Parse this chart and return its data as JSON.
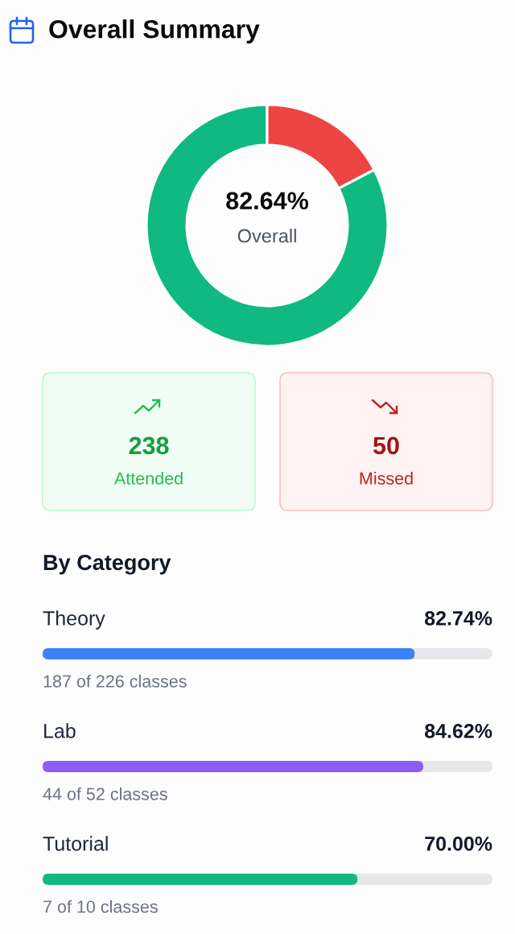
{
  "chart_data": [
    {
      "type": "donut",
      "title": "Overall Summary",
      "categories": [
        null,
        null
      ],
      "values": [
        82.64,
        17.36
      ],
      "colors": [
        "#10b981",
        "#ef4444"
      ],
      "annotations": [
        "82.64%",
        "Overall"
      ]
    },
    {
      "type": "other",
      "categories": [
        "Attended",
        "Missed"
      ],
      "values": [
        238,
        50
      ],
      "value_labels": [
        "238",
        "50"
      ],
      "colors": [
        "#f0fdf4",
        "#fef2f2"
      ]
    },
    {
      "type": "bar",
      "title": "By Category",
      "orientation": "horizontal",
      "categories": [
        "Theory",
        "Lab",
        "Tutorial"
      ],
      "values": [
        82.74,
        84.62,
        70.0
      ],
      "colors": [
        "#3b82f6",
        "#8b5cf6",
        "#10b981"
      ],
      "xlim": [
        0,
        100
      ],
      "value_labels": [
        "82.74%",
        "84.62%",
        "70.00%"
      ],
      "annotations": [
        "187 of 226 classes",
        "44 of 52 classes",
        "7 of 10 classes"
      ],
      "tick_labels": "y"
    }
  ]
}
